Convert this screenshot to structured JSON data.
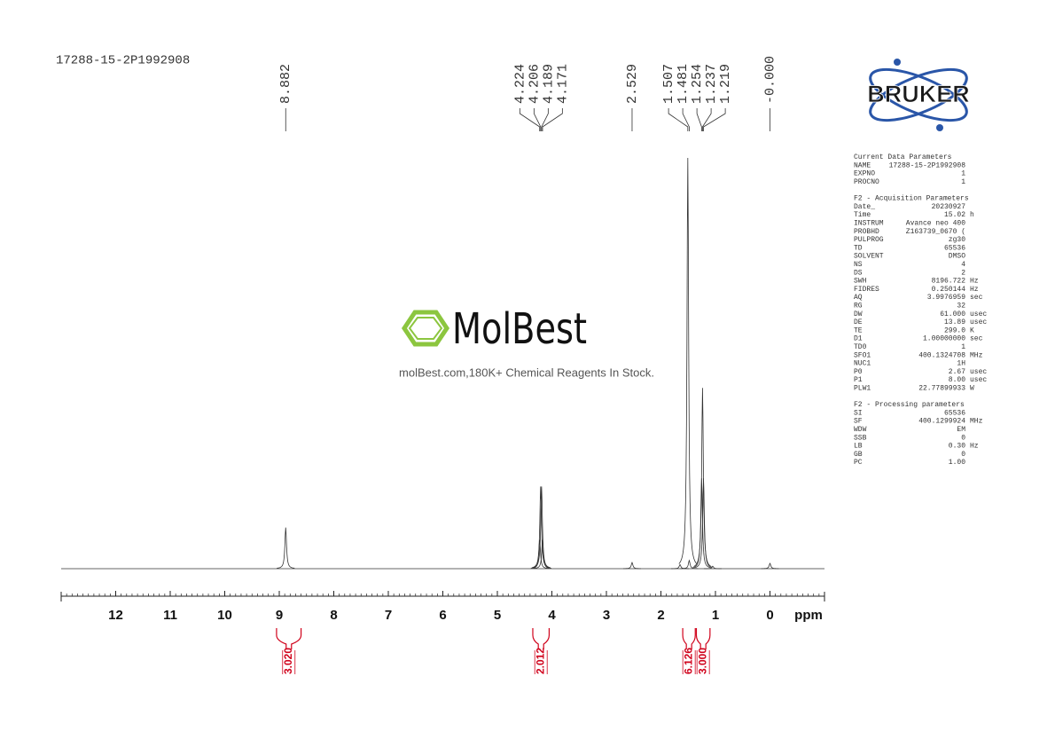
{
  "chart_data": {
    "type": "nmr",
    "title": "17288-15-2P1992908",
    "xlabel": "ppm",
    "xlim": [
      13,
      -1
    ],
    "xticks": [
      12,
      11,
      10,
      9,
      8,
      7,
      6,
      5,
      4,
      3,
      2,
      1,
      0
    ],
    "color": "#333333",
    "peaks": {
      "x": [
        8.882,
        4.224,
        4.206,
        4.189,
        4.171,
        2.529,
        1.65,
        1.507,
        1.481,
        1.254,
        1.237,
        1.219,
        1.05,
        0.0
      ],
      "values": [
        10,
        7,
        20,
        20,
        7,
        1.5,
        1,
        100,
        2,
        22,
        44,
        22,
        0.6,
        1.3
      ]
    },
    "peak_labels": [
      8.882,
      4.224,
      4.206,
      4.189,
      4.171,
      2.529,
      1.507,
      1.481,
      1.254,
      1.237,
      1.219,
      {
        "value": 0,
        "label": "-0.000"
      }
    ],
    "integrals": {
      "values": [
        3.02,
        2.012,
        6.126,
        3
      ],
      "value_labels": [
        "3.020",
        "2.012",
        "6.126",
        "3.000"
      ],
      "ranges": [
        [
          9.05,
          8.6
        ],
        [
          4.35,
          4.05
        ],
        [
          1.6,
          1.37
        ],
        [
          1.35,
          1.1
        ]
      ],
      "color": "#d0021b"
    }
  },
  "logo": {
    "text": "BRUKER",
    "color": "#2a56a8"
  },
  "watermark": {
    "name": "MolBest",
    "tagline": "molBest.com,180K+ Chemical Reagents In Stock.",
    "color": "#8cc63f"
  },
  "parameters": [
    {
      "title": "Current Data Parameters",
      "rows": [
        [
          "NAME",
          "17288-15-2P1992908"
        ],
        [
          "EXPNO",
          "1"
        ],
        [
          "PROCNO",
          "1"
        ]
      ]
    },
    {
      "title": "F2 - Acquisition Parameters",
      "rows": [
        [
          "Date_",
          "20230927"
        ],
        [
          "Time",
          "15.02",
          "h"
        ],
        [
          "INSTRUM",
          "Avance neo 400"
        ],
        [
          "PROBHD",
          "Z163739_0670 ("
        ],
        [
          "PULPROG",
          "zg30"
        ],
        [
          "TD",
          "65536"
        ],
        [
          "SOLVENT",
          "DMSO"
        ],
        [
          "NS",
          "4"
        ],
        [
          "DS",
          "2"
        ],
        [
          "SWH",
          "8196.722",
          "Hz"
        ],
        [
          "FIDRES",
          "0.250144",
          "Hz"
        ],
        [
          "AQ",
          "3.9976959",
          "sec"
        ],
        [
          "RG",
          "32"
        ],
        [
          "DW",
          "61.000",
          "usec"
        ],
        [
          "DE",
          "13.89",
          "usec"
        ],
        [
          "TE",
          "299.0",
          "K"
        ],
        [
          "D1",
          "1.00000000",
          "sec"
        ],
        [
          "TD0",
          "1"
        ],
        [
          "SFO1",
          "400.1324708",
          "MHz"
        ],
        [
          "NUC1",
          "1H"
        ],
        [
          "P0",
          "2.67",
          "usec"
        ],
        [
          "P1",
          "8.00",
          "usec"
        ],
        [
          "PLW1",
          "22.77899933",
          "W"
        ]
      ]
    },
    {
      "title": "F2 - Processing parameters",
      "rows": [
        [
          "SI",
          "65536"
        ],
        [
          "SF",
          "400.1299924",
          "MHz"
        ],
        [
          "WDW",
          "EM"
        ],
        [
          "SSB",
          "0"
        ],
        [
          "LB",
          "0.30",
          "Hz"
        ],
        [
          "GB",
          "0"
        ],
        [
          "PC",
          "1.00"
        ]
      ]
    }
  ]
}
